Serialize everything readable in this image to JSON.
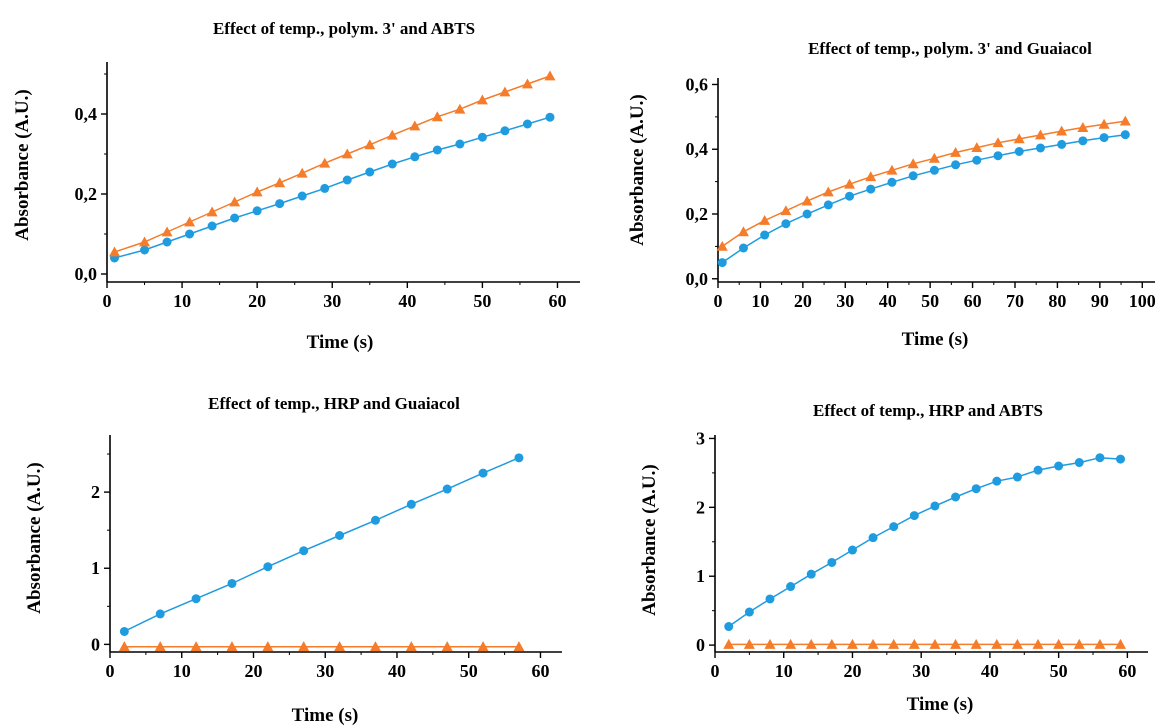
{
  "colors": {
    "circle_series": "#1f9be0",
    "triangle_series": "#f47c2a"
  },
  "chart_data": [
    {
      "type": "scatter",
      "title": "Effect of temp., polym. 3' and ABTS",
      "xlabel": "Time (s)",
      "ylabel": "Absorbance (A.U.)",
      "xlim": [
        0,
        63
      ],
      "ylim": [
        -0.02,
        0.53
      ],
      "xticks": [
        0,
        10,
        20,
        30,
        40,
        50,
        60
      ],
      "xtick_labels": [
        "0",
        "10",
        "20",
        "30",
        "40",
        "50",
        "60"
      ],
      "yticks": [
        0,
        0.2,
        0.4
      ],
      "ytick_labels": [
        "0,0",
        "0,2",
        "0,4"
      ],
      "series": [
        {
          "marker": "circle",
          "color": "#1f9be0",
          "x": [
            1,
            5,
            8,
            11,
            14,
            17,
            20,
            23,
            26,
            29,
            32,
            35,
            38,
            41,
            44,
            47,
            50,
            53,
            56,
            59
          ],
          "y": [
            0.04,
            0.06,
            0.08,
            0.1,
            0.12,
            0.14,
            0.158,
            0.176,
            0.195,
            0.214,
            0.235,
            0.255,
            0.275,
            0.293,
            0.31,
            0.325,
            0.342,
            0.358,
            0.375,
            0.392
          ]
        },
        {
          "marker": "triangle",
          "color": "#f47c2a",
          "x": [
            1,
            5,
            8,
            11,
            14,
            17,
            20,
            23,
            26,
            29,
            32,
            35,
            38,
            41,
            44,
            47,
            50,
            53,
            56,
            59
          ],
          "y": [
            0.055,
            0.08,
            0.105,
            0.13,
            0.155,
            0.18,
            0.205,
            0.228,
            0.252,
            0.277,
            0.3,
            0.323,
            0.347,
            0.37,
            0.393,
            0.412,
            0.435,
            0.455,
            0.475,
            0.495
          ]
        }
      ]
    },
    {
      "type": "scatter",
      "title": "Effect of temp., polym. 3' and Guaiacol",
      "xlabel": "Time (s)",
      "ylabel": "Absorbance (A.U.)",
      "xlim": [
        0,
        103
      ],
      "ylim": [
        -0.01,
        0.62
      ],
      "xticks": [
        0,
        10,
        20,
        30,
        40,
        50,
        60,
        70,
        80,
        90,
        100
      ],
      "xtick_labels": [
        "0",
        "10",
        "20",
        "30",
        "40",
        "50",
        "60",
        "70",
        "80",
        "90",
        "100"
      ],
      "yticks": [
        0,
        0.2,
        0.4,
        0.6
      ],
      "ytick_labels": [
        "0,0",
        "0,2",
        "0,4",
        "0,6"
      ],
      "series": [
        {
          "marker": "circle",
          "color": "#1f9be0",
          "x": [
            1,
            6,
            11,
            16,
            21,
            26,
            31,
            36,
            41,
            46,
            51,
            56,
            61,
            66,
            71,
            76,
            81,
            86,
            91,
            96
          ],
          "y": [
            0.05,
            0.095,
            0.135,
            0.17,
            0.2,
            0.228,
            0.255,
            0.277,
            0.298,
            0.318,
            0.335,
            0.352,
            0.366,
            0.38,
            0.393,
            0.404,
            0.415,
            0.426,
            0.436,
            0.445
          ]
        },
        {
          "marker": "triangle",
          "color": "#f47c2a",
          "x": [
            1,
            6,
            11,
            16,
            21,
            26,
            31,
            36,
            41,
            46,
            51,
            56,
            61,
            66,
            71,
            76,
            81,
            86,
            91,
            96
          ],
          "y": [
            0.1,
            0.145,
            0.18,
            0.21,
            0.24,
            0.268,
            0.292,
            0.315,
            0.335,
            0.355,
            0.372,
            0.39,
            0.405,
            0.42,
            0.432,
            0.444,
            0.456,
            0.467,
            0.477,
            0.487
          ]
        }
      ]
    },
    {
      "type": "scatter",
      "title": "Effect of temp., HRP and Guaiacol",
      "xlabel": "Time (s)",
      "ylabel": "Absorbance (A.U.)",
      "xlim": [
        0,
        63
      ],
      "ylim": [
        -0.1,
        2.75
      ],
      "xticks": [
        0,
        10,
        20,
        30,
        40,
        50,
        60
      ],
      "xtick_labels": [
        "0",
        "10",
        "20",
        "30",
        "40",
        "50",
        "60"
      ],
      "yticks": [
        0,
        1,
        2
      ],
      "ytick_labels": [
        "0",
        "1",
        "2"
      ],
      "series": [
        {
          "marker": "circle",
          "color": "#1f9be0",
          "x": [
            2,
            7,
            12,
            17,
            22,
            27,
            32,
            37,
            42,
            47,
            52,
            57
          ],
          "y": [
            0.17,
            0.4,
            0.6,
            0.8,
            1.02,
            1.23,
            1.43,
            1.63,
            1.84,
            2.04,
            2.25,
            2.45
          ]
        },
        {
          "marker": "triangle",
          "color": "#f47c2a",
          "x": [
            2,
            7,
            12,
            17,
            22,
            27,
            32,
            37,
            42,
            47,
            52,
            57
          ],
          "y": [
            -0.03,
            -0.03,
            -0.03,
            -0.03,
            -0.03,
            -0.03,
            -0.03,
            -0.03,
            -0.03,
            -0.03,
            -0.03,
            -0.03
          ]
        }
      ]
    },
    {
      "type": "scatter",
      "title": "Effect of temp., HRP and ABTS",
      "xlabel": "Time (s)",
      "ylabel": "Absorbance (A.U.)",
      "xlim": [
        0,
        63
      ],
      "ylim": [
        -0.1,
        3.05
      ],
      "xticks": [
        0,
        10,
        20,
        30,
        40,
        50,
        60
      ],
      "xtick_labels": [
        "0",
        "10",
        "20",
        "30",
        "40",
        "50",
        "60"
      ],
      "yticks": [
        0,
        1,
        2,
        3
      ],
      "ytick_labels": [
        "0",
        "1",
        "2",
        "3"
      ],
      "series": [
        {
          "marker": "circle",
          "color": "#1f9be0",
          "x": [
            2,
            5,
            8,
            11,
            14,
            17,
            20,
            23,
            26,
            29,
            32,
            35,
            38,
            41,
            44,
            47,
            50,
            53,
            56,
            59
          ],
          "y": [
            0.27,
            0.48,
            0.67,
            0.85,
            1.03,
            1.2,
            1.38,
            1.56,
            1.72,
            1.88,
            2.02,
            2.15,
            2.27,
            2.38,
            2.44,
            2.54,
            2.6,
            2.65,
            2.72,
            2.7
          ]
        },
        {
          "marker": "triangle",
          "color": "#f47c2a",
          "x": [
            2,
            5,
            8,
            11,
            14,
            17,
            20,
            23,
            26,
            29,
            32,
            35,
            38,
            41,
            44,
            47,
            50,
            53,
            56,
            59
          ],
          "y": [
            0.01,
            0.01,
            0.01,
            0.01,
            0.01,
            0.01,
            0.01,
            0.01,
            0.01,
            0.01,
            0.01,
            0.01,
            0.01,
            0.01,
            0.01,
            0.01,
            0.01,
            0.01,
            0.01,
            0.01
          ]
        }
      ]
    }
  ]
}
